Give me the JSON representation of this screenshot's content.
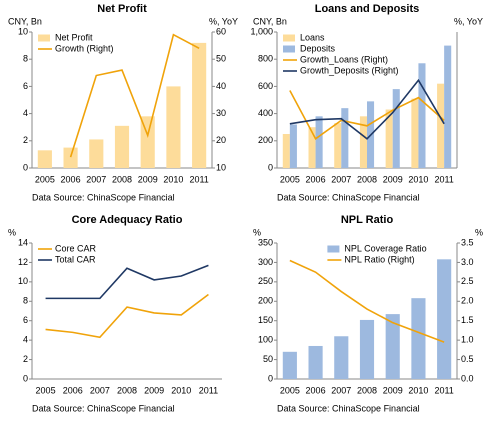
{
  "chart_data": [
    {
      "type": "bar",
      "title": "Net Profit",
      "y_label": "CNY, Bn",
      "y2_label": "%, YoY",
      "legend": "upper left",
      "categories": [
        "2005",
        "2006",
        "2007",
        "2008",
        "2009",
        "2010",
        "2011"
      ],
      "series": [
        {
          "name": "Net Profit",
          "type": "bar",
          "color": "#fddc9a",
          "values": [
            1.3,
            1.5,
            2.1,
            3.1,
            3.8,
            6.0,
            9.2
          ]
        },
        {
          "name": "Growth (Right)",
          "type": "line",
          "axis": "y2",
          "color": "#f0a30a",
          "values": [
            null,
            14,
            44,
            46,
            22,
            59,
            54
          ]
        }
      ],
      "ylim": [
        0,
        10
      ],
      "yticks": [
        0,
        2,
        4,
        6,
        8,
        10
      ],
      "y2lim": [
        10,
        60
      ],
      "y2ticks": [
        10,
        20,
        30,
        40,
        50,
        60
      ],
      "source": "Data Source: ChinaScope Financial"
    },
    {
      "type": "bar",
      "title": "Loans and Deposits",
      "y_label": "CNY, Bn",
      "y2_label": "%, YoY",
      "legend": "upper left",
      "categories": [
        "2005",
        "2006",
        "2007",
        "2008",
        "2009",
        "2010",
        "2011"
      ],
      "series": [
        {
          "name": "Loans",
          "type": "bar",
          "color": "#fddc9a",
          "values": [
            250,
            300,
            330,
            380,
            430,
            510,
            620
          ]
        },
        {
          "name": "Deposits",
          "type": "bar",
          "color": "#9db9df",
          "values": [
            320,
            380,
            440,
            490,
            580,
            770,
            900
          ]
        },
        {
          "name": "Growth_Loans (Right)",
          "type": "line",
          "axis": "y2",
          "color": "#f0a30a",
          "values": [
            22.8,
            8.6,
            14,
            12.4,
            17,
            20.7,
            14
          ]
        },
        {
          "name": "Growth_Deposits (Right)",
          "type": "line",
          "axis": "y2",
          "color": "#1f3864",
          "values": [
            13,
            14.2,
            14.5,
            8.6,
            16.3,
            25.8,
            13
          ]
        }
      ],
      "ylim": [
        0,
        1000
      ],
      "yticks": [
        0,
        200,
        400,
        600,
        800,
        {
          "value": 1000,
          "label": "1,000"
        }
      ],
      "y2lim": [
        0,
        40
      ],
      "source": "Data Source: ChinaScope Financial"
    },
    {
      "type": "line",
      "title": "Core Adequacy Ratio",
      "y_label": "%",
      "legend": "upper left",
      "categories": [
        "2005",
        "2006",
        "2007",
        "2008",
        "2009",
        "2010",
        "2011"
      ],
      "series": [
        {
          "name": "Core CAR",
          "color": "#f0a30a",
          "values": [
            5.1,
            4.8,
            4.3,
            7.4,
            6.8,
            6.6,
            8.7
          ]
        },
        {
          "name": "Total CAR",
          "color": "#1f3864",
          "values": [
            8.3,
            8.3,
            8.3,
            11.4,
            10.2,
            10.6,
            11.7
          ]
        }
      ],
      "ylim": [
        0,
        14
      ],
      "yticks": [
        0,
        2,
        4,
        6,
        8,
        10,
        12,
        14
      ],
      "source": "Data Source: ChinaScope Financial"
    },
    {
      "type": "bar",
      "title": "NPL Ratio",
      "y_label": "%",
      "y2_label": "%",
      "legend": "upper right",
      "categories": [
        "2005",
        "2006",
        "2007",
        "2008",
        "2009",
        "2010",
        "2011"
      ],
      "series": [
        {
          "name": "NPL Coverage Ratio",
          "type": "bar",
          "color": "#9db9df",
          "values": [
            70,
            85,
            110,
            152,
            167,
            208,
            308
          ]
        },
        {
          "name": "NPL Ratio (Right)",
          "type": "line",
          "axis": "y2",
          "color": "#f0a30a",
          "values": [
            3.05,
            2.75,
            2.25,
            1.8,
            1.45,
            1.2,
            0.95
          ]
        }
      ],
      "ylim": [
        0,
        350
      ],
      "yticks": [
        0,
        50,
        100,
        150,
        200,
        250,
        300,
        350
      ],
      "y2lim": [
        0,
        3.5
      ],
      "y2ticks": [
        {
          "value": 0,
          "label": "0.0"
        },
        {
          "value": 0.5,
          "label": "0.5"
        },
        {
          "value": 1,
          "label": "1.0"
        },
        {
          "value": 1.5,
          "label": "1.5"
        },
        {
          "value": 2,
          "label": "2.0"
        },
        {
          "value": 2.5,
          "label": "2.5"
        },
        {
          "value": 3,
          "label": "3.0"
        },
        {
          "value": 3.5,
          "label": "3.5"
        }
      ],
      "source": "Data Source: ChinaScope Financial"
    }
  ]
}
